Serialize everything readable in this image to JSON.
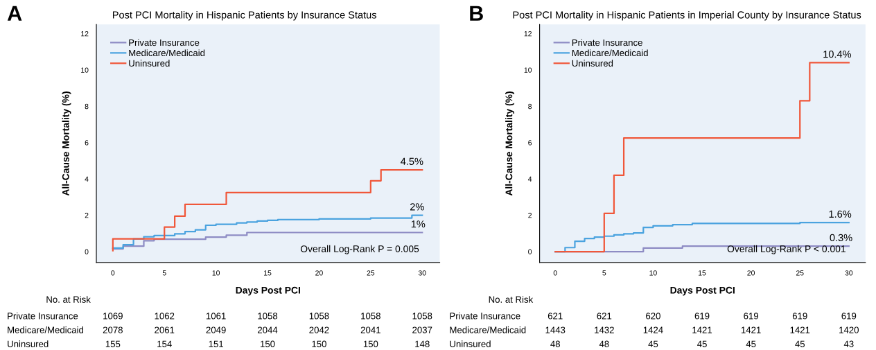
{
  "chart_data": [
    {
      "type": "step",
      "title": "Post PCI Mortality in Hispanic Patients by Insurance Status",
      "xlabel": "Days Post PCI",
      "ylabel": "All-Cause Mortality (%)",
      "xlim": [
        -1.6,
        31.7
      ],
      "ylim": [
        -0.6,
        12.5
      ],
      "xticks": [
        0,
        5,
        10,
        15,
        20,
        25,
        30
      ],
      "yticks": [
        0,
        2,
        4,
        6,
        8,
        10,
        12
      ],
      "grid": false,
      "legend": "top left",
      "series": [
        {
          "name": "Private Insurance",
          "color": "#8e8cc4",
          "x": [
            0,
            1,
            3,
            4,
            9,
            11,
            13,
            30
          ],
          "values": [
            0.15,
            0.3,
            0.6,
            0.68,
            0.8,
            0.9,
            1.05,
            1.05
          ]
        },
        {
          "name": "Medicare/Medicaid",
          "color": "#4ba3df",
          "x": [
            0,
            1,
            2,
            3,
            4,
            6,
            7,
            8,
            9,
            10,
            12,
            13,
            14,
            15,
            16,
            20,
            25,
            29,
            30
          ],
          "values": [
            0.2,
            0.38,
            0.7,
            0.82,
            0.88,
            0.98,
            1.1,
            1.2,
            1.45,
            1.5,
            1.58,
            1.63,
            1.68,
            1.72,
            1.76,
            1.8,
            1.85,
            2.0,
            2.0
          ]
        },
        {
          "name": "Uninsured",
          "color": "#f0573a",
          "x": [
            0,
            0,
            5,
            6,
            7,
            11,
            25,
            26,
            30
          ],
          "values": [
            0.05,
            0.7,
            1.35,
            1.95,
            2.6,
            3.25,
            3.9,
            4.5,
            4.5
          ]
        }
      ],
      "annotations": [
        "A",
        "Overall Log-Rank P = 0.005",
        {
          "text": "4.5%",
          "x": 29,
          "y": 4.5
        },
        {
          "text": "2%",
          "x": 29.5,
          "y": 2.0
        },
        {
          "text": "1%",
          "x": 29.6,
          "y": 1.05
        },
        "No. at Risk",
        "Private Insurance",
        "1069",
        "1062",
        "1061",
        "1058",
        "1058",
        "1058",
        "1058",
        "Medicare/Medicaid",
        "2078",
        "2061",
        "2049",
        "2044",
        "2042",
        "2041",
        "2037",
        "Uninsured",
        "155",
        "154",
        "151",
        "150",
        "150",
        "150",
        "148"
      ]
    },
    {
      "type": "step",
      "title": "Post PCI Mortality in Hispanic Patients in Imperial County by Insurance Status",
      "xlabel": "Days Post PCI",
      "ylabel": "All-Cause Mortality (%)",
      "xlim": [
        -1.6,
        31.7
      ],
      "ylim": [
        -0.6,
        12.5
      ],
      "xticks": [
        0,
        5,
        10,
        15,
        20,
        25,
        30
      ],
      "yticks": [
        0,
        2,
        4,
        6,
        8,
        10,
        12
      ],
      "grid": false,
      "legend": "top left",
      "series": [
        {
          "name": "Private Insurance",
          "color": "#8e8cc4",
          "x": [
            0,
            9,
            13,
            30
          ],
          "values": [
            0,
            0.2,
            0.3,
            0.3
          ]
        },
        {
          "name": "Medicare/Medicaid",
          "color": "#4ba3df",
          "x": [
            0,
            1,
            2,
            3,
            4,
            5,
            6,
            7,
            8,
            9,
            10,
            12,
            14,
            25,
            30
          ],
          "values": [
            0,
            0.22,
            0.57,
            0.72,
            0.8,
            0.85,
            0.92,
            0.98,
            1.03,
            1.33,
            1.42,
            1.48,
            1.55,
            1.6,
            1.6
          ]
        },
        {
          "name": "Uninsured",
          "color": "#f0573a",
          "x": [
            0,
            5,
            6,
            7,
            25,
            26,
            30
          ],
          "values": [
            0,
            2.1,
            4.2,
            6.25,
            8.3,
            10.4,
            10.4
          ]
        }
      ],
      "annotations": [
        "B",
        "Overall Log-Rank P < 0.001",
        {
          "text": "10.4%",
          "x": 28.8,
          "y": 10.4
        },
        {
          "text": "1.6%",
          "x": 29.1,
          "y": 1.6
        },
        {
          "text": "0.3%",
          "x": 29.2,
          "y": 0.3
        },
        "No. at Risk",
        "Private Insurance",
        "621",
        "621",
        "620",
        "619",
        "619",
        "619",
        "619",
        "Medicare/Medicaid",
        "1443",
        "1432",
        "1424",
        "1421",
        "1421",
        "1421",
        "1420",
        "Uninsured",
        "48",
        "48",
        "45",
        "45",
        "45",
        "45",
        "43"
      ]
    }
  ]
}
